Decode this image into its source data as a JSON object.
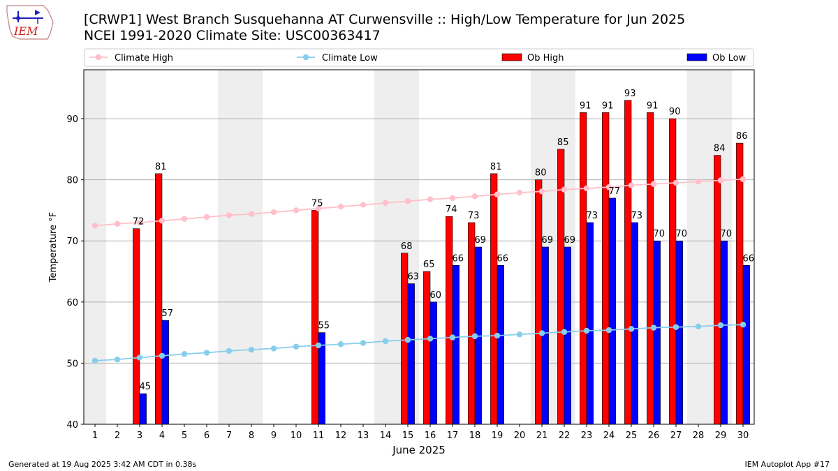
{
  "header": {
    "title": "[CRWP1] West Branch Susquehanna  AT Curwensville :: High/Low Temperature for Jun 2025",
    "subtitle": "NCEI 1991-2020 Climate Site: USC00363417",
    "logo_text": "IEM"
  },
  "footer": {
    "generated": "Generated at 19 Aug 2025 3:42 AM CDT in 0.38s",
    "app": "IEM Autoplot App #17"
  },
  "colors": {
    "climate_high": "#ffc0cb",
    "climate_low": "#87ceeb",
    "ob_high": "#ff0000",
    "ob_low": "#0000ff",
    "weekend_band": "#eeeeee",
    "grid": "#b0b0b0"
  },
  "chart_data": {
    "type": "bar",
    "xlabel": "June 2025",
    "ylabel": "Temperature °F",
    "xlim": [
      0.5,
      30.5
    ],
    "ylim": [
      40,
      98
    ],
    "yticks": [
      40,
      50,
      60,
      70,
      80,
      90
    ],
    "grid": "horizontal",
    "legend_placement": "top",
    "legend": [
      "Climate High",
      "Climate Low",
      "Ob High",
      "Ob Low"
    ],
    "categories": [
      "1",
      "2",
      "3",
      "4",
      "5",
      "6",
      "7",
      "8",
      "9",
      "10",
      "11",
      "12",
      "13",
      "14",
      "15",
      "16",
      "17",
      "18",
      "19",
      "20",
      "21",
      "22",
      "23",
      "24",
      "25",
      "26",
      "27",
      "28",
      "29",
      "30"
    ],
    "weekend_days": [
      1,
      7,
      8,
      14,
      15,
      21,
      22,
      28,
      29
    ],
    "series": [
      {
        "name": "Climate High",
        "kind": "line",
        "values": [
          72.5,
          72.8,
          73.0,
          73.3,
          73.6,
          73.9,
          74.2,
          74.4,
          74.7,
          75.0,
          75.3,
          75.6,
          75.9,
          76.2,
          76.5,
          76.8,
          77.0,
          77.3,
          77.6,
          77.9,
          78.1,
          78.4,
          78.6,
          78.8,
          79.1,
          79.3,
          79.5,
          79.7,
          79.9,
          80.1
        ]
      },
      {
        "name": "Climate Low",
        "kind": "line",
        "values": [
          50.4,
          50.6,
          50.9,
          51.2,
          51.5,
          51.7,
          52.0,
          52.2,
          52.4,
          52.7,
          52.9,
          53.1,
          53.3,
          53.6,
          53.8,
          54.0,
          54.2,
          54.4,
          54.5,
          54.7,
          54.9,
          55.1,
          55.3,
          55.4,
          55.6,
          55.8,
          55.9,
          56.0,
          56.2,
          56.3
        ]
      },
      {
        "name": "Ob High",
        "kind": "bar",
        "values": [
          null,
          null,
          72,
          81,
          null,
          null,
          null,
          null,
          null,
          null,
          75,
          null,
          null,
          null,
          68,
          65,
          74,
          73,
          81,
          null,
          80,
          85,
          91,
          91,
          93,
          91,
          90,
          null,
          84,
          86
        ]
      },
      {
        "name": "Ob Low",
        "kind": "bar",
        "values": [
          null,
          null,
          45,
          57,
          null,
          null,
          null,
          null,
          null,
          null,
          55,
          null,
          null,
          null,
          63,
          60,
          66,
          69,
          66,
          null,
          69,
          69,
          73,
          77,
          73,
          70,
          70,
          null,
          70,
          66
        ]
      }
    ]
  }
}
